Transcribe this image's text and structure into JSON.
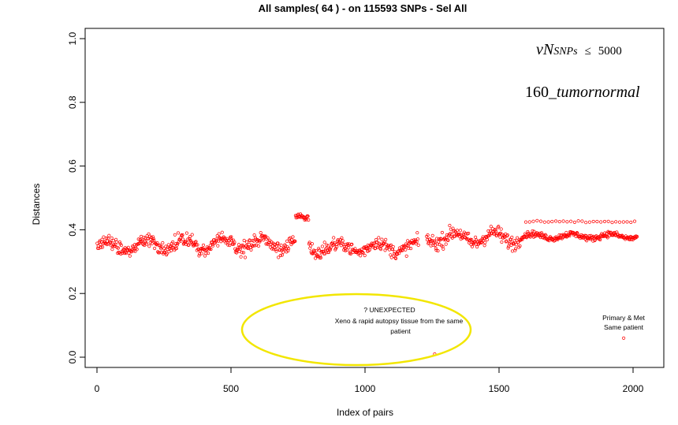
{
  "chart_data": {
    "type": "scatter",
    "title": "All samples( 64 ) - on  115593 SNPs - Sel All",
    "xlabel": "Index of pairs",
    "ylabel": "Distances",
    "xlim": [
      0,
      2016
    ],
    "ylim": [
      0,
      1.0
    ],
    "x_ticks": [
      "0",
      "500",
      "1000",
      "1500",
      "2000"
    ],
    "y_ticks": [
      "0.0",
      "0.2",
      "0.4",
      "0.6",
      "0.8",
      "1.0"
    ],
    "grid": false,
    "legend": "none",
    "marker_color": "#ff0000",
    "segments": [
      {
        "x_start": 1,
        "x_end": 180,
        "y_center": 0.35,
        "y_spread": 0.045
      },
      {
        "x_start": 181,
        "x_end": 740,
        "y_center": 0.355,
        "y_spread": 0.045
      },
      {
        "x_start": 741,
        "x_end": 790,
        "y_center": 0.435,
        "y_spread": 0.02
      },
      {
        "x_start": 791,
        "x_end": 1200,
        "y_center": 0.345,
        "y_spread": 0.045
      },
      {
        "x_start": 1230,
        "x_end": 1580,
        "y_center": 0.375,
        "y_spread": 0.05
      },
      {
        "x_start": 1581,
        "x_end": 2016,
        "y_center": 0.38,
        "y_spread": 0.02
      }
    ],
    "upper_band": {
      "x_start": 1600,
      "x_end": 2016,
      "y": 0.425
    },
    "outliers": [
      {
        "x": 1260,
        "y": 0.01
      },
      {
        "x": 1965,
        "y": 0.06
      }
    ],
    "annotations": {
      "formula": {
        "main": "vN",
        "subscript": "SNPs",
        "relation": "≤",
        "value": "5000"
      },
      "formula2": {
        "number": "160",
        "separator": "_",
        "text": "tumornormal"
      },
      "unexpected_title": "? UNEXPECTED",
      "unexpected_line1": "Xeno & rapid autopsy tissue from the same",
      "unexpected_line2": "patient",
      "primary_line1": "Primary & Met",
      "primary_line2": "Same patient",
      "ellipse_color": "#f2e600"
    }
  }
}
